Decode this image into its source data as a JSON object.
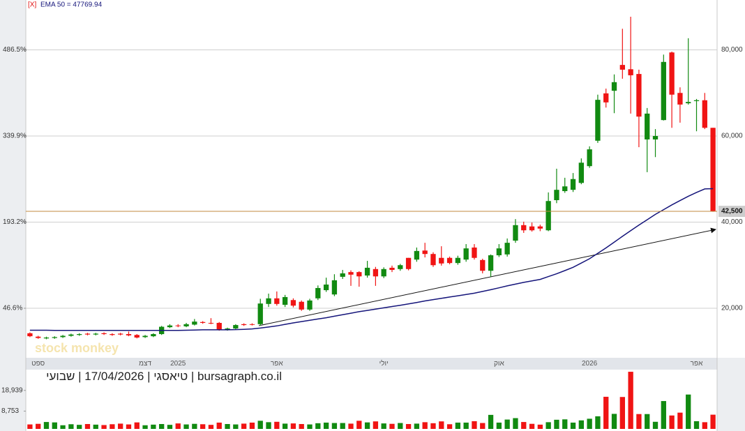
{
  "chart_data": {
    "type": "candlestick",
    "close_marker": "[X]",
    "indicator_label": "EMA 50 = 47769.94",
    "header": "bursagraph.co.il | טיאסגי | 17/04/2026 | שבועי",
    "watermark": "stock monkey",
    "categories": [
      null,
      "ספט",
      null,
      null,
      null,
      null,
      null,
      null,
      null,
      null,
      null,
      null,
      null,
      null,
      "דצמ",
      null,
      null,
      null,
      "2025",
      null,
      null,
      null,
      null,
      null,
      null,
      null,
      null,
      null,
      null,
      null,
      "אפר",
      null,
      null,
      null,
      null,
      null,
      null,
      null,
      null,
      null,
      null,
      null,
      null,
      "יולי",
      null,
      null,
      null,
      null,
      null,
      null,
      null,
      null,
      null,
      null,
      null,
      null,
      null,
      "אוק",
      null,
      null,
      null,
      null,
      null,
      null,
      null,
      null,
      null,
      null,
      "2026",
      null,
      null,
      null,
      null,
      null,
      null,
      null,
      null,
      null,
      null,
      null,
      null,
      "אפר",
      null,
      null
    ],
    "open": [
      14200,
      13400,
      13000,
      13100,
      13300,
      13600,
      13800,
      14100,
      13900,
      14200,
      14000,
      14100,
      14000,
      13800,
      13300,
      13500,
      14000,
      15600,
      16000,
      15800,
      16200,
      16800,
      16600,
      16600,
      15000,
      15300,
      16300,
      16300,
      16300,
      21000,
      22300,
      20800,
      21900,
      21500,
      19700,
      22300,
      24200,
      23200,
      27300,
      28400,
      28400,
      27600,
      29100,
      27400,
      29400,
      29100,
      31700,
      31300,
      33400,
      32600,
      31700,
      31700,
      30500,
      31300,
      34100,
      31200,
      28700,
      32300,
      32500,
      35700,
      39300,
      39000,
      39000,
      38100,
      45100,
      47200,
      47500,
      49100,
      53000,
      58900,
      69900,
      70500,
      76500,
      75500,
      74400,
      59200,
      59200,
      63700,
      79400,
      70000,
      67600,
      68100,
      68300,
      61900
    ],
    "high": [
      14400,
      13600,
      13400,
      13500,
      13800,
      14100,
      14200,
      14300,
      14300,
      14400,
      14200,
      14300,
      14600,
      14000,
      13800,
      14200,
      15900,
      16300,
      16300,
      16600,
      17500,
      17000,
      17700,
      16800,
      15500,
      16300,
      16500,
      16500,
      22200,
      23400,
      23900,
      23100,
      22300,
      21800,
      22200,
      25300,
      27100,
      27900,
      28900,
      28800,
      28600,
      31000,
      29600,
      29500,
      29900,
      30300,
      31700,
      34100,
      35200,
      33000,
      34400,
      32000,
      32200,
      34900,
      34900,
      31500,
      32500,
      34900,
      36200,
      40700,
      40100,
      39900,
      39400,
      46900,
      52400,
      50300,
      51400,
      54800,
      57600,
      69600,
      71000,
      74300,
      84900,
      87700,
      75400,
      66500,
      61600,
      78900,
      79600,
      71300,
      82700,
      68600,
      70000,
      61900
    ],
    "low": [
      13300,
      12900,
      12800,
      12900,
      13100,
      13400,
      13600,
      13700,
      13700,
      13800,
      13600,
      13700,
      13500,
      13000,
      13100,
      13300,
      13800,
      15400,
      15600,
      15600,
      16000,
      16400,
      16300,
      14800,
      14800,
      15100,
      15900,
      16000,
      15950,
      20300,
      20600,
      20300,
      20200,
      19400,
      19400,
      21900,
      23800,
      22800,
      26800,
      25200,
      25000,
      27100,
      25200,
      27000,
      28400,
      28700,
      28800,
      30800,
      31800,
      29600,
      29900,
      30200,
      30100,
      30800,
      31300,
      28100,
      27300,
      31900,
      32000,
      35200,
      37500,
      37800,
      37900,
      37900,
      44400,
      46800,
      47000,
      48800,
      52600,
      58400,
      66600,
      65300,
      73300,
      65200,
      57400,
      51600,
      55100,
      63600,
      61900,
      63100,
      67300,
      61100,
      61600,
      42400
    ],
    "close": [
      13500,
      13100,
      13200,
      13300,
      13600,
      13900,
      14000,
      13900,
      14100,
      14000,
      13800,
      13900,
      13700,
      13200,
      13600,
      14000,
      15700,
      16000,
      15900,
      16300,
      16900,
      16600,
      16500,
      15000,
      15300,
      16100,
      16100,
      16200,
      21100,
      22300,
      21000,
      22600,
      20600,
      19700,
      21800,
      24700,
      25500,
      26500,
      28100,
      27800,
      27400,
      29400,
      27400,
      29100,
      28900,
      30000,
      29100,
      33300,
      32600,
      30000,
      30400,
      30500,
      31700,
      33900,
      31700,
      28700,
      32300,
      33900,
      35200,
      39300,
      38100,
      38100,
      38500,
      44900,
      47500,
      48300,
      50000,
      53800,
      56900,
      68400,
      67800,
      72500,
      75400,
      74100,
      64500,
      65200,
      60000,
      77200,
      69600,
      67300,
      67900,
      68300,
      61900,
      42500
    ],
    "ema": [
      14900,
      14900,
      14900,
      14850,
      14850,
      14850,
      14850,
      14850,
      14850,
      14850,
      14850,
      14850,
      14850,
      14850,
      14850,
      14850,
      14850,
      14850,
      14850,
      14900,
      14950,
      15000,
      15000,
      15000,
      15000,
      15050,
      15100,
      15200,
      15400,
      15650,
      15900,
      16250,
      16600,
      16900,
      17200,
      17500,
      17800,
      18150,
      18500,
      18850,
      19200,
      19500,
      19800,
      20100,
      20400,
      20700,
      21000,
      21350,
      21700,
      22000,
      22300,
      22600,
      22900,
      23200,
      23500,
      23900,
      24300,
      24750,
      25200,
      25600,
      26000,
      26350,
      26700,
      27350,
      28000,
      28750,
      29500,
      30500,
      31500,
      32750,
      34000,
      35350,
      36700,
      38000,
      39300,
      40550,
      41800,
      42900,
      44000,
      45000,
      46000,
      46900,
      47700,
      47770
    ],
    "volume": [
      2200,
      2500,
      3400,
      3200,
      1800,
      2300,
      2000,
      2400,
      2100,
      1900,
      2300,
      2600,
      2200,
      3200,
      1800,
      2100,
      2400,
      2000,
      2700,
      2200,
      2500,
      2300,
      2000,
      3100,
      2400,
      2200,
      2600,
      3100,
      4000,
      3300,
      3500,
      2600,
      2700,
      2400,
      2200,
      2800,
      3100,
      2900,
      2900,
      2600,
      4000,
      3200,
      3700,
      2700,
      2500,
      2900,
      2400,
      2600,
      3300,
      2800,
      3700,
      2300,
      3100,
      3100,
      3800,
      2900,
      6900,
      3100,
      4600,
      5300,
      3400,
      2500,
      2100,
      3300,
      4500,
      4700,
      3100,
      4200,
      5000,
      6200,
      15800,
      7400,
      15700,
      28100,
      7300,
      7300,
      3500,
      13700,
      6600,
      8000,
      16900,
      3800,
      3300,
      7000
    ],
    "ylim": [
      8500,
      91580
    ],
    "yticks": [
      {
        "value": 20000,
        "label": "20,000"
      },
      {
        "value": 40000,
        "label": "40,000"
      },
      {
        "value": 60000,
        "label": "60,000"
      },
      {
        "value": 80000,
        "label": "80,000"
      }
    ],
    "y2lim": [
      -37.7,
      571.5
    ],
    "y2ticks": [
      {
        "value": 46.6,
        "label": "46.6%"
      },
      {
        "value": 193.2,
        "label": "193.2%"
      },
      {
        "value": 339.9,
        "label": "339.9%"
      },
      {
        "value": 486.5,
        "label": "486.5%"
      }
    ],
    "volume_ylim": [
      0,
      29150
    ],
    "volume_ticks": [
      {
        "value": 8753,
        "label": "8,753"
      },
      {
        "value": 18939,
        "label": "18,939"
      }
    ],
    "price_line": {
      "value": 42500,
      "label": "42,500",
      "color": "#c08a3e"
    },
    "colors": {
      "up": "#118a11",
      "down": "#f01414",
      "ema": "#14147a"
    },
    "grid": true
  }
}
